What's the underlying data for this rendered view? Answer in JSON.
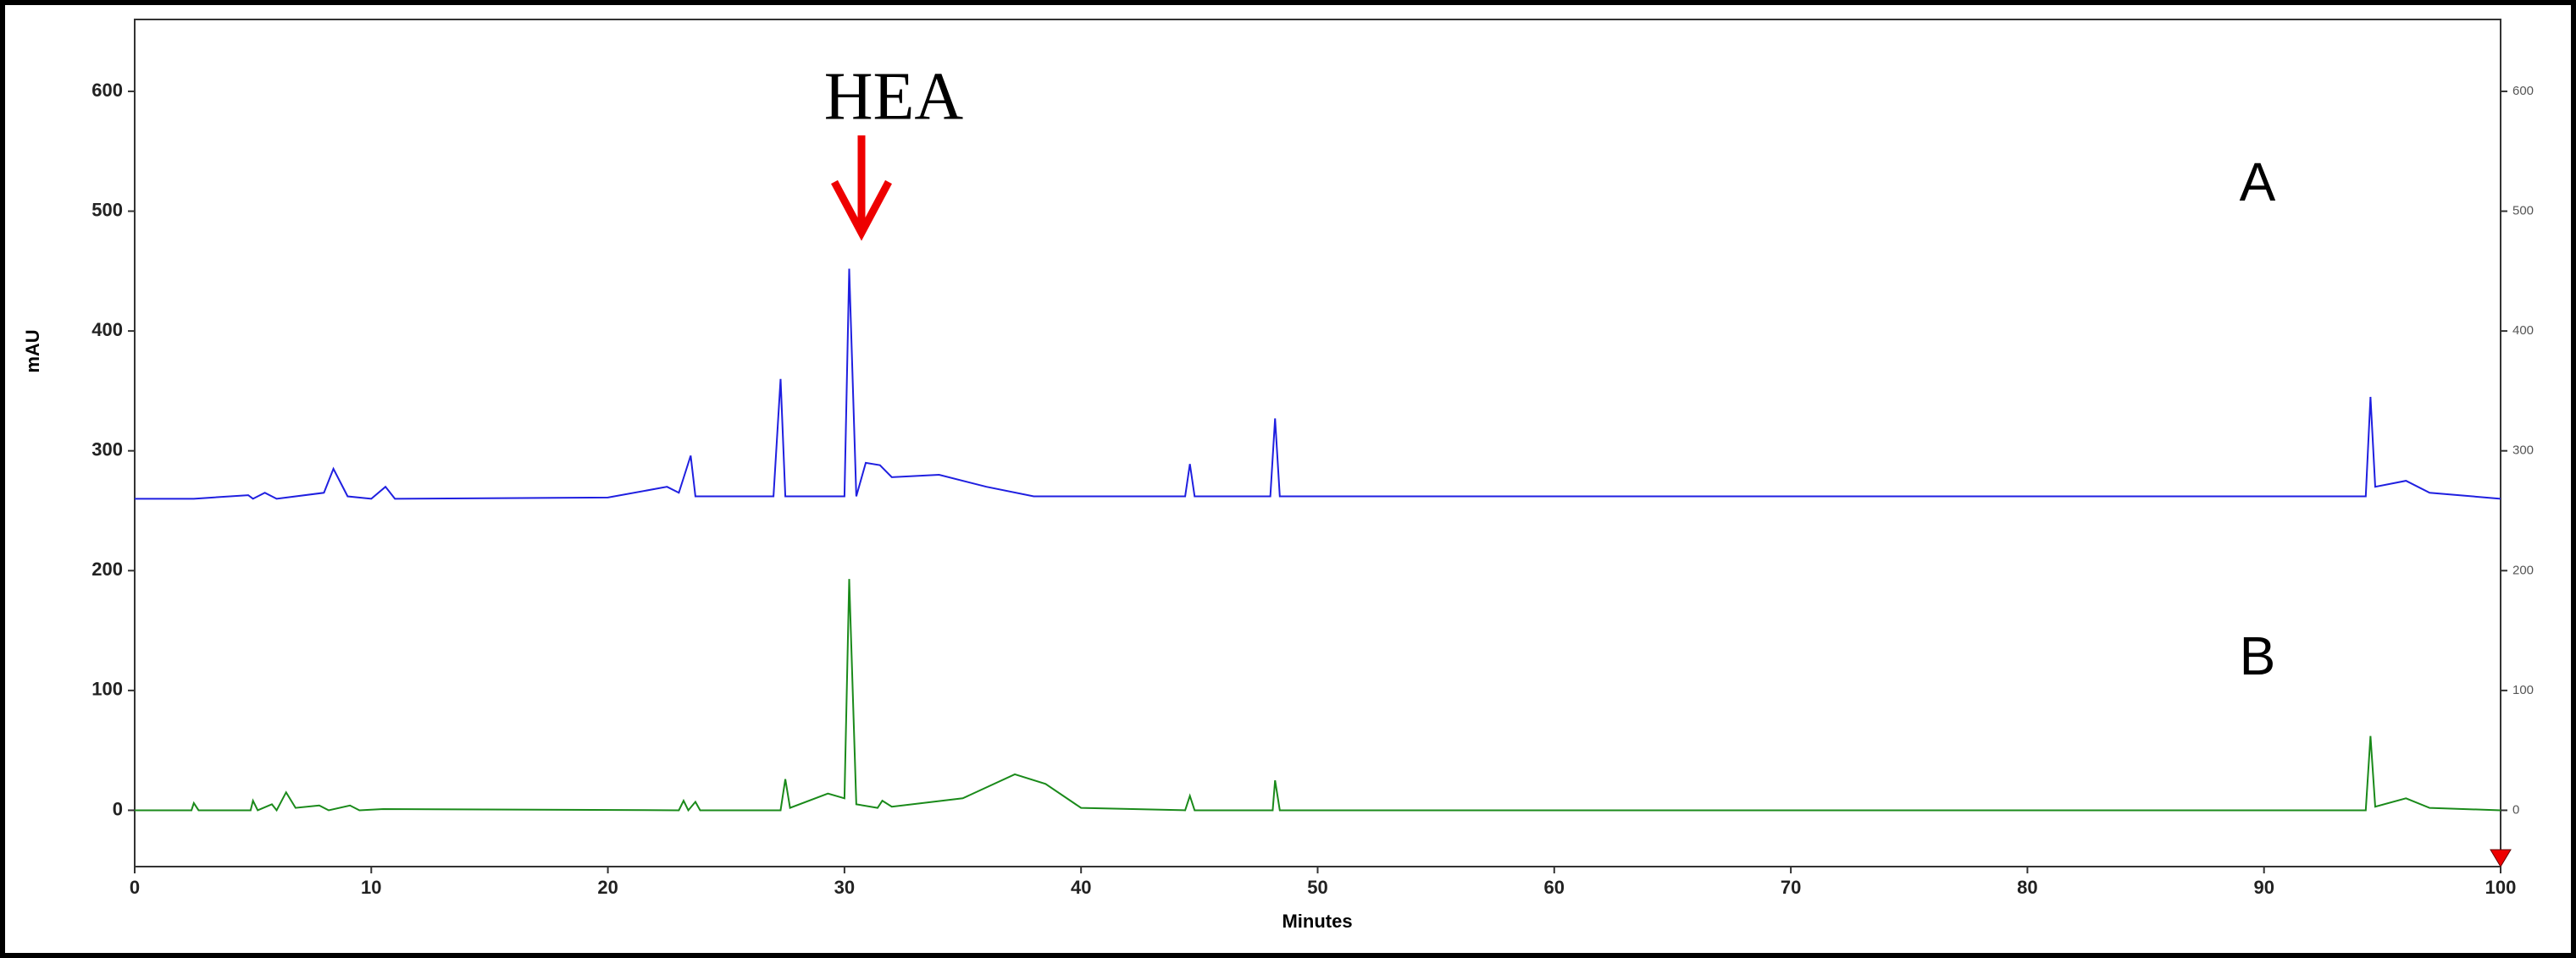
{
  "chart_data": {
    "type": "line",
    "annotation": "HEA",
    "xlabel": "Minutes",
    "ylabel": "mAU",
    "xlim": [
      0,
      100
    ],
    "xticks": [
      0,
      10,
      20,
      30,
      40,
      50,
      60,
      70,
      80,
      90,
      100
    ],
    "ylim": [
      -47,
      660
    ],
    "yticks": [
      0,
      100,
      200,
      300,
      400,
      500,
      600
    ],
    "y2lim": [
      -47,
      660
    ],
    "y2ticks": [
      0,
      100,
      200,
      300,
      400,
      500,
      600
    ],
    "series": [
      {
        "name": "A",
        "color": "#1f1fe0",
        "x": [
          0,
          2.5,
          4.8,
          5,
          5.5,
          6,
          8,
          8.4,
          9,
          10,
          10.6,
          11,
          20,
          22.5,
          23,
          23.5,
          23.7,
          27,
          27.3,
          27.5,
          29,
          30,
          30.2,
          30.5,
          30.9,
          31.5,
          32,
          34,
          36,
          38,
          44.4,
          44.6,
          44.8,
          48,
          48.2,
          48.4,
          94.3,
          94.5,
          94.7,
          96,
          97,
          100
        ],
        "values": [
          260,
          260,
          263,
          260,
          265,
          260,
          265,
          285,
          262,
          260,
          270,
          260,
          261,
          270,
          265,
          296,
          262,
          262,
          360,
          262,
          262,
          262,
          452,
          262,
          290,
          288,
          278,
          280,
          270,
          262,
          262,
          289,
          262,
          262,
          327,
          262,
          262,
          345,
          270,
          275,
          265,
          260
        ]
      },
      {
        "name": "B",
        "color": "#1a8a1a",
        "x": [
          0,
          2.4,
          2.5,
          2.7,
          4.9,
          5,
          5.2,
          5.8,
          6,
          6.4,
          6.8,
          7.8,
          8.2,
          9.1,
          9.5,
          10.5,
          23,
          23.2,
          23.4,
          23.7,
          23.9,
          27.3,
          27.5,
          27.7,
          29.3,
          30,
          30.2,
          30.5,
          31.4,
          31.6,
          32,
          35,
          37.2,
          38.5,
          40,
          44.4,
          44.6,
          44.8,
          48.1,
          48.2,
          48.4,
          94.3,
          94.5,
          94.7,
          96,
          97,
          100
        ],
        "values": [
          0,
          0,
          6,
          0,
          0,
          8,
          0,
          5,
          0,
          15,
          2,
          4,
          0,
          4,
          0,
          1,
          0,
          8,
          0,
          7,
          0,
          0,
          26,
          2,
          14,
          10,
          193,
          5,
          2,
          8,
          3,
          10,
          30,
          22,
          2,
          0,
          12,
          0,
          0,
          25,
          0,
          0,
          62,
          3,
          10,
          2,
          0
        ]
      }
    ]
  }
}
